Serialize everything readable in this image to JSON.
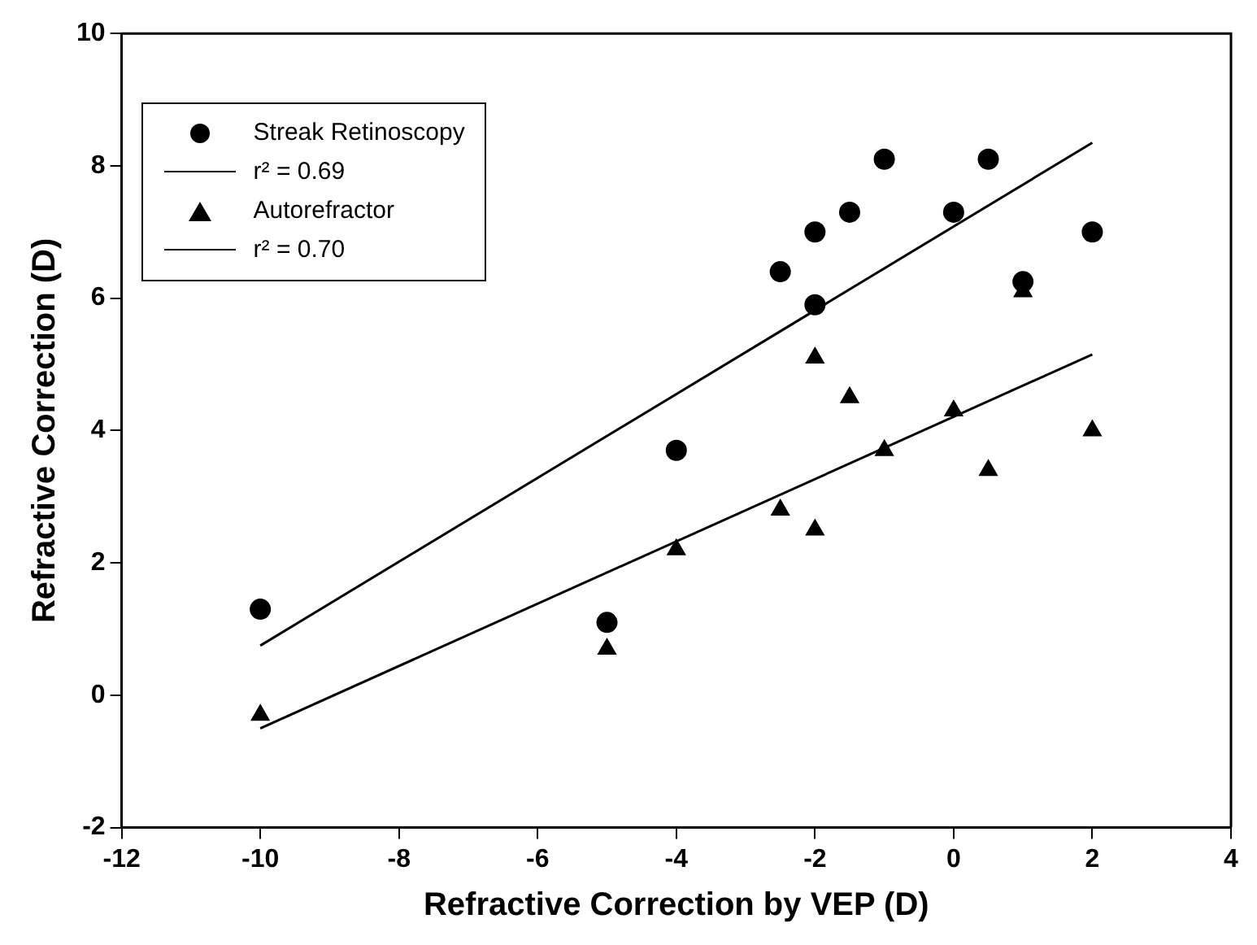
{
  "chart_data": {
    "type": "scatter",
    "xlabel": "Refractive Correction by VEP (D)",
    "ylabel": "Refractive Correction (D)",
    "xlim": [
      -12,
      4
    ],
    "xticks": [
      -12,
      -10,
      -8,
      -6,
      -4,
      -2,
      0,
      2,
      4
    ],
    "ylim": [
      -2,
      10
    ],
    "yticks": [
      -2,
      0,
      2,
      4,
      6,
      8,
      10
    ],
    "grid": false,
    "legend": "top left",
    "series": [
      {
        "name": "Streak Retinoscopy",
        "type": "scatter",
        "marker": "circle",
        "color": "#000000",
        "x": [
          -10,
          -5,
          -4,
          -2.5,
          -2,
          -2,
          -1.5,
          -1,
          0,
          0.5,
          1,
          2
        ],
        "values": [
          1.3,
          1.1,
          3.7,
          6.4,
          7.0,
          5.9,
          7.3,
          8.1,
          7.3,
          8.1,
          6.25,
          7.0
        ]
      },
      {
        "name": "r² = 0.69",
        "type": "line",
        "marker": "none",
        "color": "#000000",
        "x": [
          -10,
          2
        ],
        "values": [
          0.75,
          8.35
        ]
      },
      {
        "name": "Autorefractor",
        "type": "scatter",
        "marker": "triangle",
        "color": "#000000",
        "x": [
          -10,
          -5,
          -4,
          -2.5,
          -2,
          -2,
          -1.5,
          -1,
          0,
          0.5,
          1,
          2
        ],
        "values": [
          -0.3,
          0.7,
          2.2,
          2.8,
          5.1,
          2.5,
          4.5,
          3.7,
          4.3,
          3.4,
          6.1,
          4.0
        ]
      },
      {
        "name": "r² = 0.70",
        "type": "line",
        "marker": "none",
        "color": "#000000",
        "x": [
          -10,
          2
        ],
        "values": [
          -0.5,
          5.15
        ]
      }
    ]
  }
}
